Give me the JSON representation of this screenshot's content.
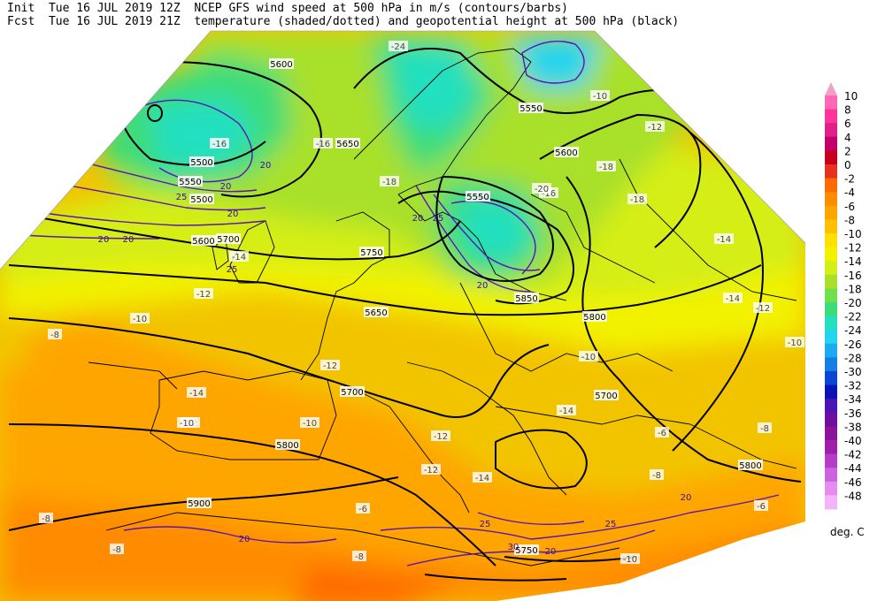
{
  "header": {
    "line1_left": "Init  Tue 16 JUL 2019 12Z",
    "line2_left": "Fcst  Tue 16 JUL 2019 21Z",
    "line1_right": "NCEP GFS wind speed at 500 hPa in m/s (contours/barbs)",
    "line2_right": "temperature (shaded/dotted) and geopotential height at 500 hPa (black)"
  },
  "colorbar": {
    "unit": "deg. C",
    "levels": [
      "10",
      "8",
      "6",
      "4",
      "2",
      "0",
      "-2",
      "-4",
      "-6",
      "-8",
      "-10",
      "-12",
      "-14",
      "-16",
      "-18",
      "-20",
      "-22",
      "-24",
      "-26",
      "-28",
      "-30",
      "-32",
      "-34",
      "-36",
      "-38",
      "-40",
      "-42",
      "-44",
      "-46",
      "-48"
    ],
    "colors": [
      "#ff69b4",
      "#ff3399",
      "#e01f8a",
      "#c2006b",
      "#c8001e",
      "#e6321e",
      "#ff6a00",
      "#ff8c00",
      "#ffa500",
      "#ffc000",
      "#ffe000",
      "#f2f200",
      "#d4ee18",
      "#a8e02a",
      "#6ee04a",
      "#3cdc78",
      "#22e0c0",
      "#22d4ee",
      "#1eaaf0",
      "#1480e6",
      "#0a46d2",
      "#0a14b4",
      "#4b14b4",
      "#6e0fa0",
      "#8c1496",
      "#a01eaa",
      "#b43cc8",
      "#cc62dc",
      "#e68cf0",
      "#f5b4fa"
    ],
    "triangle_top": "#f0a0c8"
  },
  "height_labels": [
    "5500",
    "5550",
    "5600",
    "5650",
    "5700",
    "5750",
    "5800",
    "5850",
    "5900"
  ],
  "height_label_items": [
    {
      "t": "5600"
    },
    {
      "t": "5500"
    },
    {
      "t": "5550"
    },
    {
      "t": "5500"
    },
    {
      "t": "5650"
    },
    {
      "t": "5550"
    },
    {
      "t": "5600"
    },
    {
      "t": "5550"
    },
    {
      "t": "5700"
    },
    {
      "t": "5600"
    },
    {
      "t": "5750"
    },
    {
      "t": "5650"
    },
    {
      "t": "5800"
    },
    {
      "t": "5700"
    },
    {
      "t": "5850"
    },
    {
      "t": "5700"
    },
    {
      "t": "5800"
    },
    {
      "t": "5900"
    },
    {
      "t": "5750"
    },
    {
      "t": "5800"
    }
  ],
  "temp_label_items": [
    {
      "t": "-24"
    },
    {
      "t": "-16"
    },
    {
      "t": "-16"
    },
    {
      "t": "-16"
    },
    {
      "t": "-18"
    },
    {
      "t": "-18"
    },
    {
      "t": "-20"
    },
    {
      "t": "-18"
    },
    {
      "t": "-14"
    },
    {
      "t": "-14"
    },
    {
      "t": "-14"
    },
    {
      "t": "-12"
    },
    {
      "t": "-10"
    },
    {
      "t": "-8"
    },
    {
      "t": "-12"
    },
    {
      "t": "-12"
    },
    {
      "t": "-10"
    },
    {
      "t": "-10"
    },
    {
      "t": "-14"
    },
    {
      "t": "-12"
    },
    {
      "t": "-12"
    },
    {
      "t": "-10"
    },
    {
      "t": "-10"
    },
    {
      "t": "-8"
    },
    {
      "t": "-6"
    },
    {
      "t": "-8"
    },
    {
      "t": "-6"
    },
    {
      "t": "-6"
    },
    {
      "t": "-8"
    },
    {
      "t": "-10"
    },
    {
      "t": "-12"
    },
    {
      "t": "-8"
    },
    {
      "t": "-14"
    },
    {
      "t": "-12"
    },
    {
      "t": "-14"
    },
    {
      "t": "-10"
    },
    {
      "t": "-8"
    }
  ],
  "wind_label_items": [
    {
      "t": "20"
    },
    {
      "t": "20"
    },
    {
      "t": "25"
    },
    {
      "t": "20"
    },
    {
      "t": "20"
    },
    {
      "t": "25"
    },
    {
      "t": "20"
    },
    {
      "t": "20"
    },
    {
      "t": "25"
    },
    {
      "t": "20"
    },
    {
      "t": "20"
    },
    {
      "t": "25"
    },
    {
      "t": "30"
    },
    {
      "t": "20"
    },
    {
      "t": "25"
    },
    {
      "t": "20"
    }
  ]
}
